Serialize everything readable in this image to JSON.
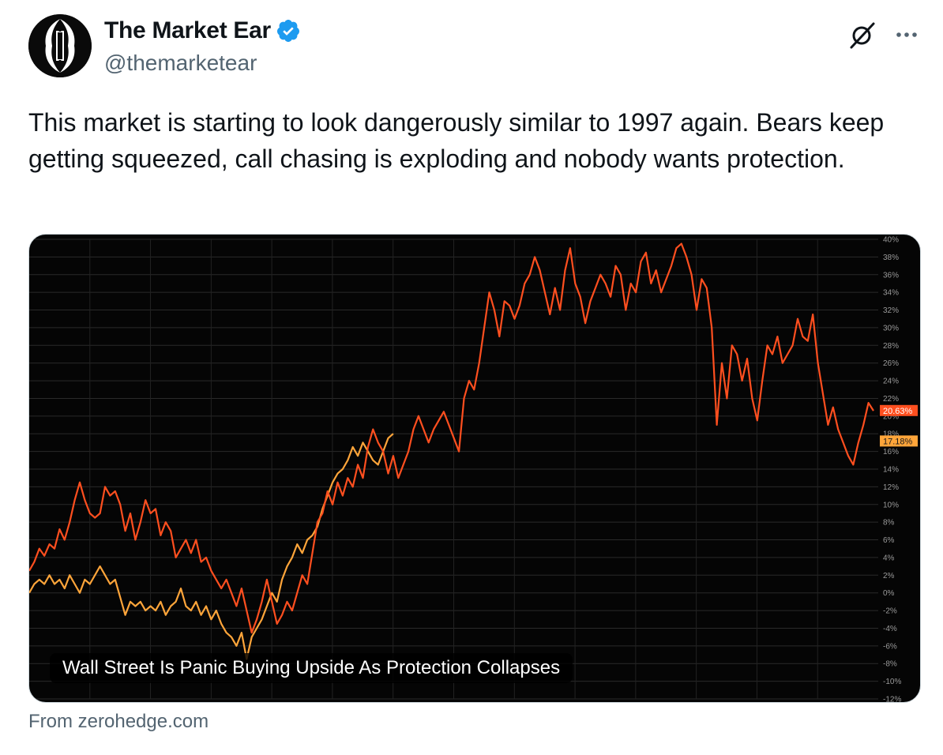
{
  "header": {
    "display_name": "The Market Ear",
    "handle": "@themarketear",
    "verified": true
  },
  "icons": {
    "avatar": "the-market-ear-logo",
    "verified": "verified-badge-icon",
    "grok": "grok-icon",
    "more": "more-horizontal-icon"
  },
  "tweet": {
    "text": "This market is starting to look dangerously similar to 1997 again. Bears keep getting squeezed, call chasing is exploding and nobody wants protection."
  },
  "media": {
    "caption": "Wall Street Is Panic Buying Upside As Protection Collapses"
  },
  "source": {
    "text": "From zerohedge.com"
  },
  "colors": {
    "text_primary": "#0f1419",
    "text_secondary": "#536471",
    "verified_blue": "#1d9bf0",
    "chart_bg": "#050505",
    "series_red": "#ff4f1f",
    "series_orange": "#ffa53a"
  },
  "chart_data": {
    "type": "line",
    "title": "",
    "xlabel": "",
    "ylabel": "",
    "ylim": [
      -12,
      40
    ],
    "y_ticks": [
      "40%",
      "38%",
      "36%",
      "34%",
      "32%",
      "30%",
      "28%",
      "26%",
      "24%",
      "22%",
      "20%",
      "18%",
      "16%",
      "14%",
      "12%",
      "10%",
      "8%",
      "6%",
      "4%",
      "2%",
      "0%",
      "-2%",
      "-4%",
      "-6%",
      "-8%",
      "-10%",
      "-12%"
    ],
    "grid": true,
    "legend": "none",
    "last_value_labels": [
      "20.63%",
      "17.18%"
    ],
    "series": [
      {
        "color": "#ff4f1f",
        "last_value": 20.63,
        "values": [
          2.5,
          3.5,
          5.0,
          4.2,
          5.5,
          5.0,
          7.2,
          6.0,
          8.0,
          10.5,
          12.5,
          10.5,
          9.0,
          8.5,
          9.0,
          12.0,
          11.0,
          11.5,
          10.0,
          7.0,
          9.0,
          6.0,
          8.0,
          10.5,
          9.0,
          9.5,
          6.5,
          8.0,
          7.0,
          4.0,
          5.0,
          6.0,
          4.5,
          6.0,
          3.5,
          4.0,
          2.5,
          1.5,
          0.5,
          1.5,
          0.0,
          -1.5,
          0.5,
          -2.0,
          -4.5,
          -3.0,
          -1.0,
          1.5,
          -1.0,
          -3.5,
          -2.5,
          -1.0,
          -2.0,
          0.0,
          2.0,
          1.0,
          4.5,
          8.0,
          9.0,
          11.5,
          10.0,
          12.5,
          11.0,
          13.0,
          12.0,
          14.5,
          13.0,
          16.5,
          18.5,
          17.0,
          16.0,
          13.5,
          15.5,
          13.0,
          14.5,
          16.0,
          18.5,
          20.0,
          18.5,
          17.0,
          18.5,
          19.5,
          20.5,
          19.0,
          17.5,
          16.0,
          22.0,
          24.0,
          23.0,
          26.0,
          30.0,
          34.0,
          32.0,
          29.0,
          33.0,
          32.5,
          31.0,
          32.5,
          35.0,
          36.0,
          38.0,
          36.5,
          34.0,
          31.5,
          34.5,
          32.0,
          36.5,
          39.0,
          35.0,
          33.5,
          30.5,
          33.0,
          34.5,
          36.0,
          35.0,
          33.5,
          37.0,
          36.0,
          32.0,
          35.0,
          34.0,
          37.5,
          38.5,
          35.0,
          36.5,
          34.0,
          35.5,
          37.0,
          39.0,
          39.5,
          38.0,
          36.0,
          32.0,
          35.5,
          34.5,
          30.0,
          19.0,
          26.0,
          22.0,
          28.0,
          27.0,
          24.0,
          26.5,
          22.0,
          19.5,
          24.0,
          28.0,
          27.0,
          29.0,
          26.0,
          27.0,
          28.0,
          31.0,
          29.0,
          28.5,
          31.5,
          26.0,
          22.5,
          19.0,
          21.0,
          18.5,
          17.0,
          15.5,
          14.5,
          17.0,
          19.0,
          21.5,
          20.6
        ]
      },
      {
        "color": "#ffa53a",
        "last_value": 17.18,
        "values": [
          0.0,
          1.0,
          1.5,
          1.0,
          2.0,
          1.0,
          1.5,
          0.5,
          2.0,
          1.0,
          0.0,
          1.5,
          1.0,
          2.0,
          3.0,
          2.0,
          1.0,
          1.5,
          -0.5,
          -2.5,
          -1.0,
          -1.5,
          -1.0,
          -2.0,
          -1.5,
          -2.0,
          -1.0,
          -2.5,
          -1.5,
          -1.0,
          0.5,
          -1.5,
          -2.0,
          -1.0,
          -2.5,
          -1.5,
          -3.0,
          -2.0,
          -3.5,
          -4.5,
          -5.0,
          -6.0,
          -4.5,
          -7.5,
          -5.0,
          -4.0,
          -3.0,
          -1.5,
          0.0,
          -1.0,
          1.5,
          3.0,
          4.0,
          5.5,
          4.5,
          6.0,
          6.5,
          7.5,
          9.5,
          11.0,
          12.5,
          13.5,
          14.0,
          15.0,
          16.5,
          15.5,
          17.0,
          16.0,
          15.0,
          14.5,
          16.0,
          17.5,
          18.0
        ]
      }
    ]
  }
}
